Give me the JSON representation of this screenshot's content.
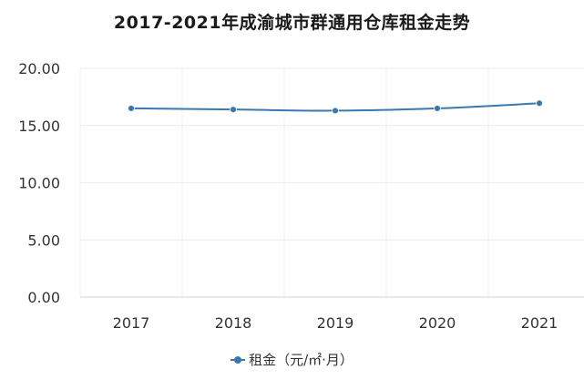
{
  "chart_data": {
    "type": "line",
    "title": "2017-2021年成渝城市群通用仓库租金走势",
    "categories": [
      "2017",
      "2018",
      "2019",
      "2020",
      "2021"
    ],
    "series": [
      {
        "name": "租金（元/㎡·月）",
        "values": [
          16.5,
          16.4,
          16.3,
          16.5,
          16.95
        ],
        "color": "#3a78ad"
      }
    ],
    "y_ticks": [
      "0.00",
      "5.00",
      "10.00",
      "15.00",
      "20.00"
    ],
    "ylim": [
      0,
      20
    ],
    "xlabel": "",
    "ylabel": "",
    "grid": true,
    "legend_position": "bottom"
  }
}
